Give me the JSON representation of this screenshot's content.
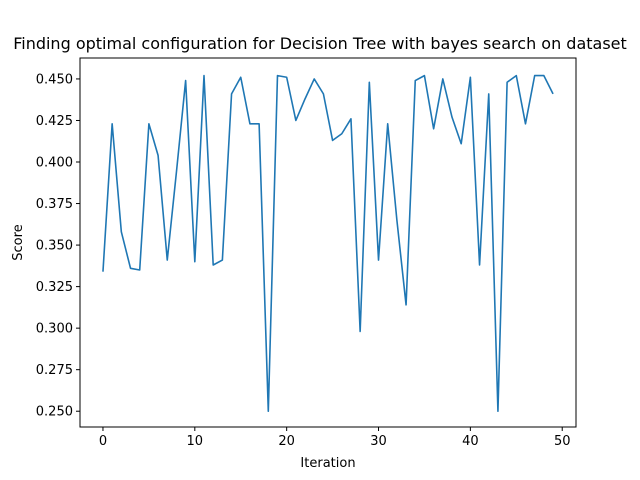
{
  "chart_data": {
    "type": "line",
    "title": "Finding optimal configuration for Decision Tree with bayes search on dataset",
    "xlabel": "Iteration",
    "ylabel": "Score",
    "xlim": [
      -2.5,
      51.5
    ],
    "ylim": [
      0.2405,
      0.4626
    ],
    "xticks": [
      0,
      10,
      20,
      30,
      40,
      50
    ],
    "yticks": [
      0.25,
      0.275,
      0.3,
      0.325,
      0.35,
      0.375,
      0.4,
      0.425,
      0.45
    ],
    "ytick_labels": [
      "0.250",
      "0.275",
      "0.300",
      "0.325",
      "0.350",
      "0.375",
      "0.400",
      "0.425",
      "0.450"
    ],
    "grid": false,
    "series": [
      {
        "color": "#1f77b4",
        "x": [
          0,
          1,
          2,
          3,
          4,
          5,
          6,
          7,
          8,
          9,
          10,
          11,
          12,
          13,
          14,
          15,
          16,
          17,
          18,
          19,
          20,
          21,
          22,
          23,
          24,
          25,
          26,
          27,
          28,
          29,
          30,
          31,
          32,
          33,
          34,
          35,
          36,
          37,
          38,
          39,
          40,
          41,
          42,
          43,
          44,
          45,
          46,
          47,
          48,
          49
        ],
        "y": [
          0.334,
          0.423,
          0.358,
          0.336,
          0.335,
          0.423,
          0.404,
          0.341,
          0.394,
          0.449,
          0.34,
          0.452,
          0.338,
          0.341,
          0.441,
          0.451,
          0.423,
          0.423,
          0.25,
          0.452,
          0.451,
          0.425,
          0.438,
          0.45,
          0.441,
          0.413,
          0.417,
          0.426,
          0.298,
          0.448,
          0.341,
          0.423,
          0.365,
          0.314,
          0.449,
          0.452,
          0.42,
          0.45,
          0.427,
          0.411,
          0.451,
          0.338,
          0.441,
          0.25,
          0.448,
          0.452,
          0.423,
          0.452,
          0.452,
          0.441
        ]
      }
    ]
  }
}
